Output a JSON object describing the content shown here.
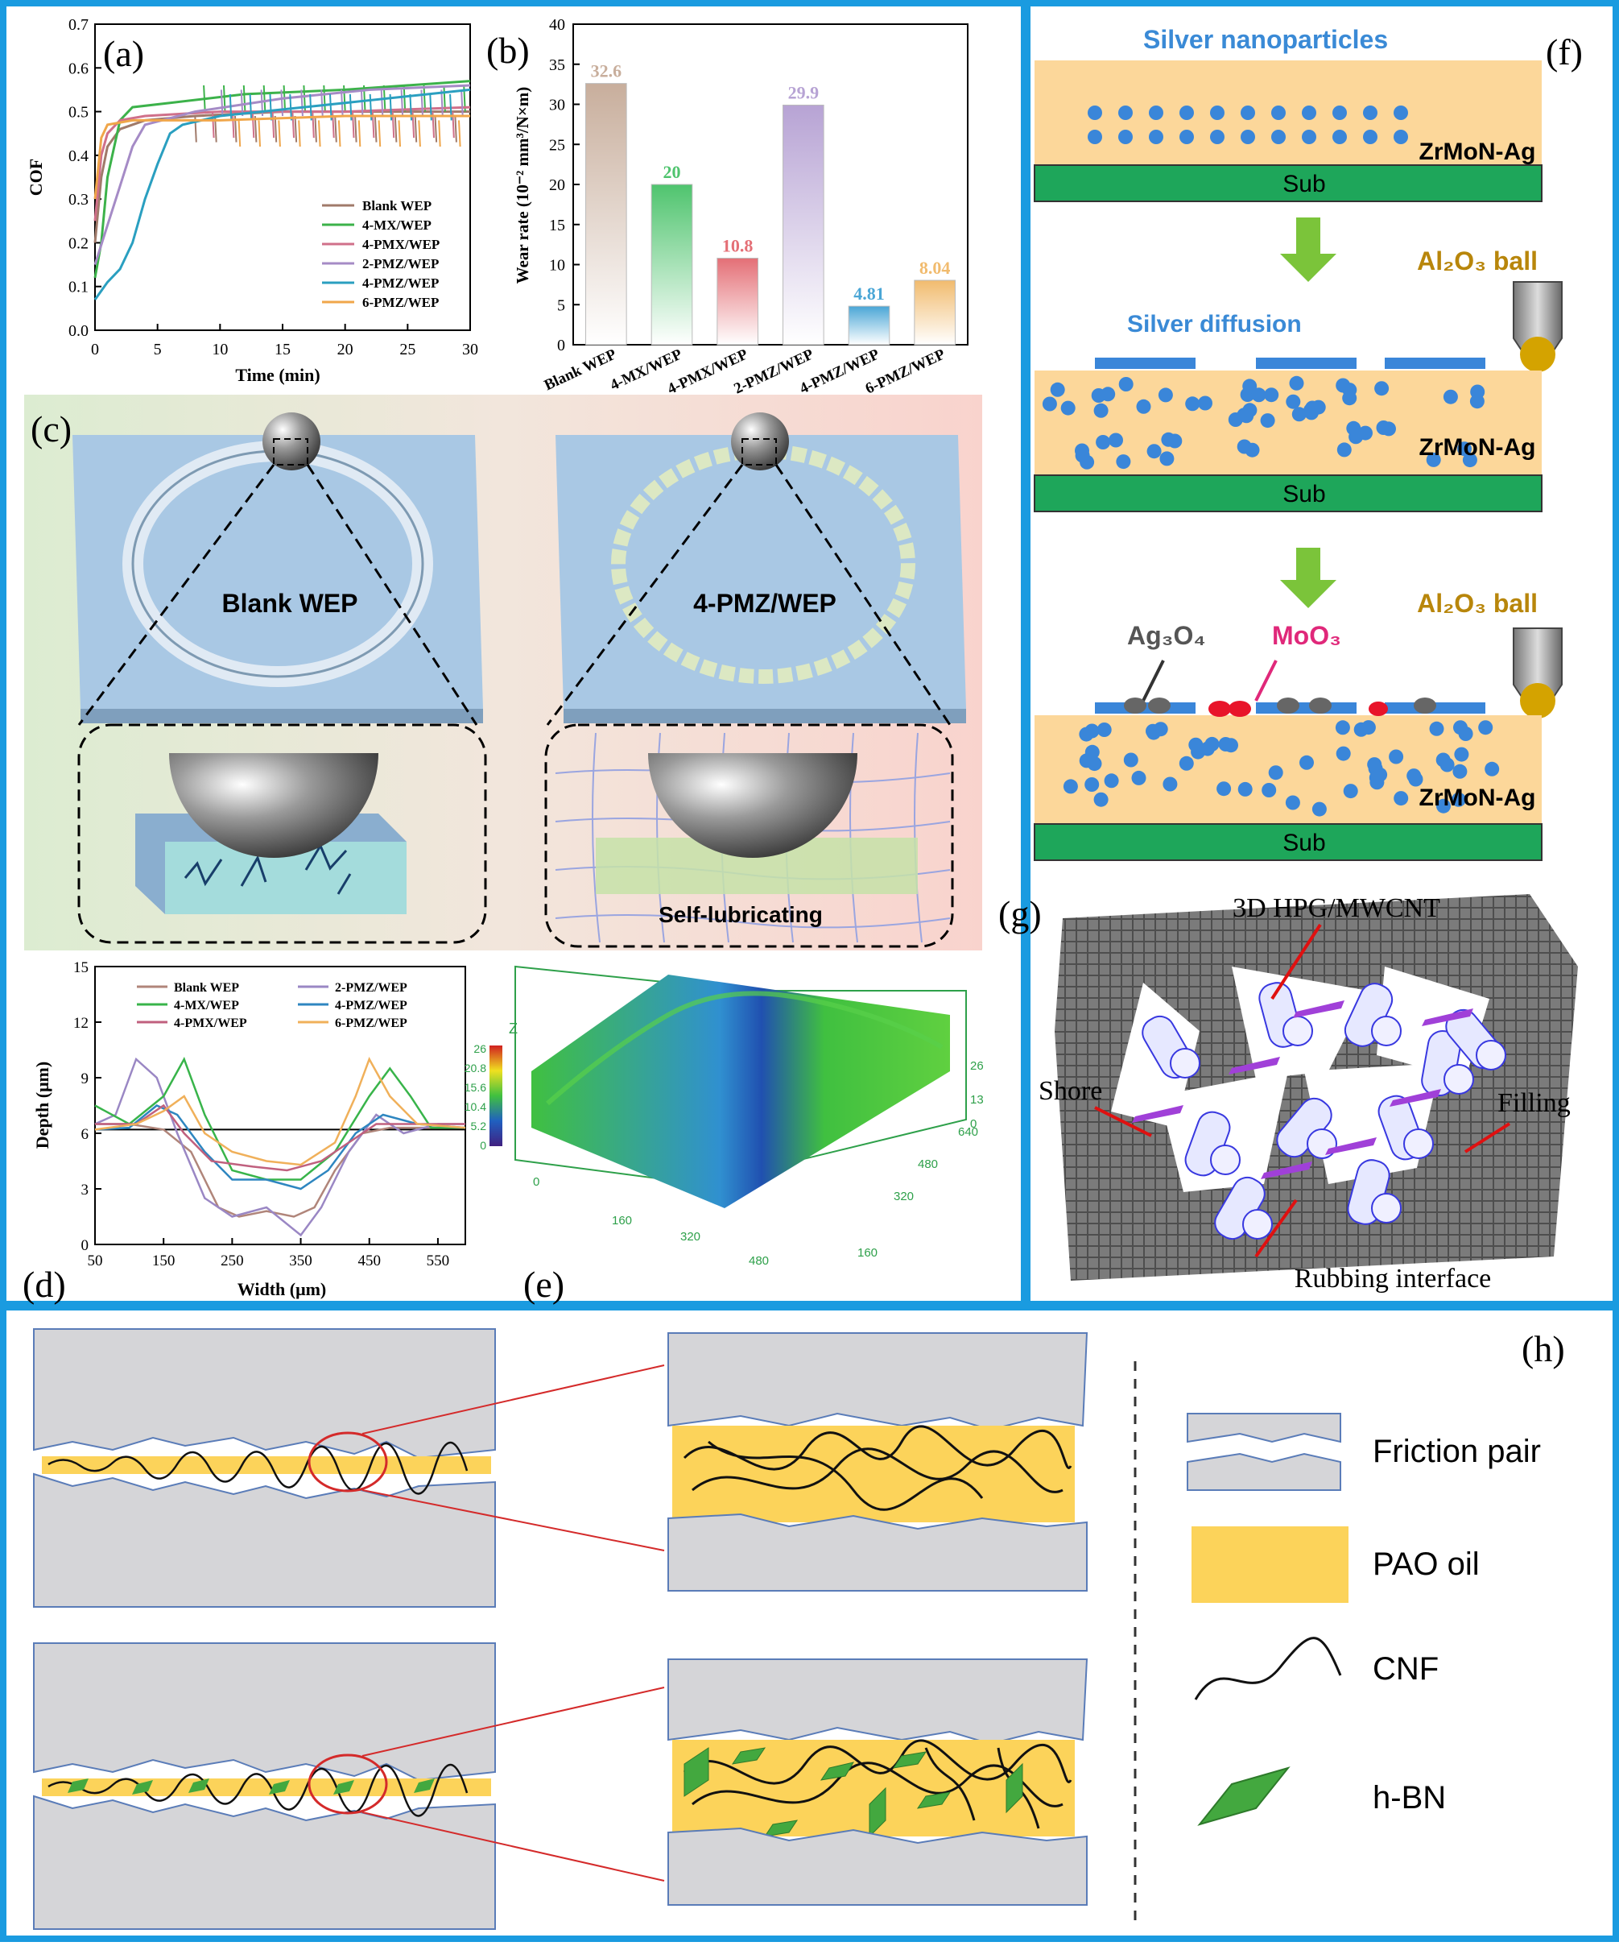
{
  "panel_labels": {
    "a": "(a)",
    "b": "(b)",
    "c": "(c)",
    "d": "(d)",
    "e": "(e)",
    "f": "(f)",
    "g": "(g)",
    "h": "(h)"
  },
  "colors": {
    "frame": "#1a9be0",
    "coating": "#fcd79a",
    "substrate": "#1ea65a",
    "silver": "#3a86d9",
    "oil": "#fcd35a",
    "pair": "#d5d5d8",
    "pair_edge": "#5a7cb8",
    "hbn": "#43a83f",
    "fiber": "#111111",
    "zoom": "#d42a2a",
    "green_bg": "#e3f0da",
    "pink_bg": "#f8d7d2"
  },
  "chart_data": [
    {
      "panel": "a",
      "type": "line",
      "xlabel": "Time (min)",
      "ylabel": "COF",
      "xlim": [
        0,
        30
      ],
      "ylim": [
        0,
        0.7
      ],
      "xticks": [
        "0",
        "5",
        "10",
        "15",
        "20",
        "25",
        "30"
      ],
      "yticks": [
        "0.0",
        "0.1",
        "0.2",
        "0.3",
        "0.4",
        "0.5",
        "0.6",
        "0.7"
      ],
      "legend_position": "bottom-right",
      "series": [
        {
          "name": "Blank WEP",
          "color": "#a07a6a",
          "points": [
            [
              0,
              0.2
            ],
            [
              0.5,
              0.35
            ],
            [
              1,
              0.42
            ],
            [
              2,
              0.46
            ],
            [
              4,
              0.48
            ],
            [
              8,
              0.49
            ],
            [
              15,
              0.5
            ],
            [
              22,
              0.5
            ],
            [
              30,
              0.5
            ]
          ]
        },
        {
          "name": "4-MX/WEP",
          "color": "#3cb24a",
          "points": [
            [
              0,
              0.12
            ],
            [
              0.5,
              0.2
            ],
            [
              1,
              0.35
            ],
            [
              2,
              0.48
            ],
            [
              3,
              0.51
            ],
            [
              6,
              0.52
            ],
            [
              12,
              0.54
            ],
            [
              20,
              0.55
            ],
            [
              30,
              0.57
            ]
          ]
        },
        {
          "name": "4-PMX/WEP",
          "color": "#d0708a",
          "points": [
            [
              0,
              0.25
            ],
            [
              0.5,
              0.4
            ],
            [
              1,
              0.45
            ],
            [
              2,
              0.48
            ],
            [
              4,
              0.49
            ],
            [
              10,
              0.5
            ],
            [
              20,
              0.5
            ],
            [
              30,
              0.51
            ]
          ]
        },
        {
          "name": "2-PMZ/WEP",
          "color": "#a58bc6",
          "points": [
            [
              0,
              0.15
            ],
            [
              1,
              0.24
            ],
            [
              2,
              0.33
            ],
            [
              3,
              0.42
            ],
            [
              4,
              0.47
            ],
            [
              8,
              0.5
            ],
            [
              15,
              0.53
            ],
            [
              22,
              0.55
            ],
            [
              30,
              0.56
            ]
          ]
        },
        {
          "name": "4-PMZ/WEP",
          "color": "#2a9fc0",
          "points": [
            [
              0,
              0.07
            ],
            [
              1,
              0.11
            ],
            [
              2,
              0.14
            ],
            [
              3,
              0.2
            ],
            [
              4,
              0.3
            ],
            [
              5,
              0.38
            ],
            [
              6,
              0.45
            ],
            [
              7,
              0.47
            ],
            [
              10,
              0.49
            ],
            [
              20,
              0.52
            ],
            [
              30,
              0.55
            ]
          ]
        },
        {
          "name": "6-PMZ/WEP",
          "color": "#f0a64a",
          "points": [
            [
              0,
              0.3
            ],
            [
              0.5,
              0.44
            ],
            [
              1,
              0.47
            ],
            [
              3,
              0.48
            ],
            [
              10,
              0.48
            ],
            [
              20,
              0.49
            ],
            [
              30,
              0.49
            ]
          ]
        }
      ]
    },
    {
      "panel": "b",
      "type": "bar",
      "ylabel": "Wear rate (10⁻² mm³/N×m)",
      "ylim": [
        0,
        40
      ],
      "yticks": [
        "0",
        "5",
        "10",
        "15",
        "20",
        "25",
        "30",
        "35",
        "40"
      ],
      "categories": [
        "Blank WEP",
        "4-MX/WEP",
        "4-PMX/WEP",
        "2-PMZ/WEP",
        "4-PMZ/WEP",
        "6-PMZ/WEP"
      ],
      "values": [
        32.6,
        20,
        10.8,
        29.9,
        4.81,
        8.04
      ],
      "value_labels": [
        "32.6",
        "20",
        "10.8",
        "29.9",
        "4.81",
        "8.04"
      ],
      "colors": [
        "#c8ae9c",
        "#4fc46e",
        "#e46f76",
        "#b7a3d4",
        "#4aa6d6",
        "#f1bb6e"
      ]
    },
    {
      "panel": "d",
      "type": "line",
      "xlabel": "Width (μm)",
      "ylabel": "Depth (μm)",
      "xlim": [
        50,
        590
      ],
      "ylim": [
        0,
        15
      ],
      "xticks": [
        "50",
        "150",
        "250",
        "350",
        "450",
        "550"
      ],
      "yticks": [
        "0",
        "3",
        "6",
        "9",
        "12",
        "15"
      ],
      "reference_line": 6.2,
      "legend_position": "top",
      "series": [
        {
          "name": "Blank WEP",
          "color": "#b0857a",
          "points": [
            [
              50,
              6.5
            ],
            [
              100,
              6.5
            ],
            [
              150,
              6.2
            ],
            [
              190,
              5
            ],
            [
              230,
              2
            ],
            [
              260,
              1.5
            ],
            [
              300,
              1.8
            ],
            [
              340,
              1.5
            ],
            [
              370,
              2
            ],
            [
              400,
              4
            ],
            [
              440,
              6
            ],
            [
              480,
              6.3
            ],
            [
              540,
              6.3
            ],
            [
              590,
              6.3
            ]
          ]
        },
        {
          "name": "2-PMZ/WEP",
          "color": "#9a87c4",
          "points": [
            [
              50,
              6.5
            ],
            [
              80,
              7
            ],
            [
              110,
              10
            ],
            [
              140,
              9
            ],
            [
              170,
              6
            ],
            [
              210,
              2.5
            ],
            [
              250,
              1.5
            ],
            [
              300,
              2
            ],
            [
              350,
              0.5
            ],
            [
              380,
              2
            ],
            [
              420,
              5
            ],
            [
              460,
              7
            ],
            [
              500,
              6
            ],
            [
              550,
              6.5
            ],
            [
              590,
              6.5
            ]
          ]
        },
        {
          "name": "4-MX/WEP",
          "color": "#38b44a",
          "points": [
            [
              50,
              7.5
            ],
            [
              100,
              6.5
            ],
            [
              150,
              8
            ],
            [
              180,
              10
            ],
            [
              210,
              7
            ],
            [
              250,
              4
            ],
            [
              300,
              3.5
            ],
            [
              350,
              3.5
            ],
            [
              400,
              5
            ],
            [
              450,
              8
            ],
            [
              480,
              9.5
            ],
            [
              510,
              8
            ],
            [
              540,
              6.3
            ],
            [
              590,
              6.3
            ]
          ]
        },
        {
          "name": "4-PMZ/WEP",
          "color": "#2e86c0",
          "points": [
            [
              50,
              6.2
            ],
            [
              100,
              6.3
            ],
            [
              140,
              7.5
            ],
            [
              170,
              7
            ],
            [
              210,
              5
            ],
            [
              250,
              3.5
            ],
            [
              300,
              3.5
            ],
            [
              350,
              3
            ],
            [
              390,
              4
            ],
            [
              430,
              6
            ],
            [
              470,
              7
            ],
            [
              520,
              6.5
            ],
            [
              590,
              6.3
            ]
          ]
        },
        {
          "name": "4-PMX/WEP",
          "color": "#c0607e",
          "points": [
            [
              50,
              6.5
            ],
            [
              110,
              6.5
            ],
            [
              150,
              7.5
            ],
            [
              180,
              6
            ],
            [
              220,
              4.5
            ],
            [
              280,
              4.2
            ],
            [
              330,
              4
            ],
            [
              380,
              4.5
            ],
            [
              420,
              5.5
            ],
            [
              460,
              6.5
            ],
            [
              520,
              6.5
            ],
            [
              590,
              6.5
            ]
          ]
        },
        {
          "name": "6-PMZ/WEP",
          "color": "#f0b05a",
          "points": [
            [
              50,
              6.2
            ],
            [
              110,
              6.5
            ],
            [
              150,
              7.2
            ],
            [
              180,
              8
            ],
            [
              210,
              6
            ],
            [
              250,
              5
            ],
            [
              300,
              4.5
            ],
            [
              350,
              4.3
            ],
            [
              400,
              5.5
            ],
            [
              430,
              8
            ],
            [
              450,
              10
            ],
            [
              480,
              8
            ],
            [
              520,
              6.5
            ],
            [
              590,
              6.3
            ]
          ]
        }
      ]
    },
    {
      "panel": "e",
      "type": "surface",
      "colorbar_ticks": [
        "26",
        "20.8",
        "15.6",
        "10.4",
        "5.2",
        "0"
      ],
      "axis_label": "Z",
      "x_ticks": [
        "0",
        "160",
        "320",
        "480"
      ],
      "y_ticks": [
        "160",
        "320",
        "480",
        "640"
      ],
      "z_ticks": [
        "0",
        "13",
        "26"
      ]
    }
  ],
  "panel_c": {
    "left_label": "Blank WEP",
    "right_label": "4-PMZ/WEP",
    "bottom_right": "Self-lubricating"
  },
  "panel_f": {
    "title": "Silver nanoparticles",
    "coating": "ZrMoN-Ag",
    "sub": "Sub",
    "ball": "Al₂O₃ ball",
    "diffusion": "Silver diffusion",
    "ag3o4": "Ag₃O₄",
    "moo3": "MoO₃"
  },
  "panel_g": {
    "top": "3D HPG/MWCNT",
    "left": "Shore",
    "right": "Filling",
    "bottom": "Rubbing interface"
  },
  "panel_h": {
    "legend": [
      {
        "name": "Friction pair"
      },
      {
        "name": "PAO oil"
      },
      {
        "name": "CNF"
      },
      {
        "name": "h-BN"
      }
    ]
  }
}
